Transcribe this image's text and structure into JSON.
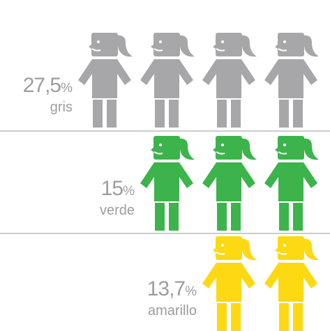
{
  "chart_data": {
    "type": "pictogram",
    "categories": [
      "gris",
      "verde",
      "amarillo"
    ],
    "values": [
      27.5,
      15,
      13.7
    ],
    "value_labels": [
      "27,5",
      "15",
      "13,7"
    ],
    "unit": "%",
    "icons": [
      4,
      3,
      2
    ],
    "colors": [
      "#a7a7a9",
      "#3cb44b",
      "#fcd912"
    ]
  }
}
